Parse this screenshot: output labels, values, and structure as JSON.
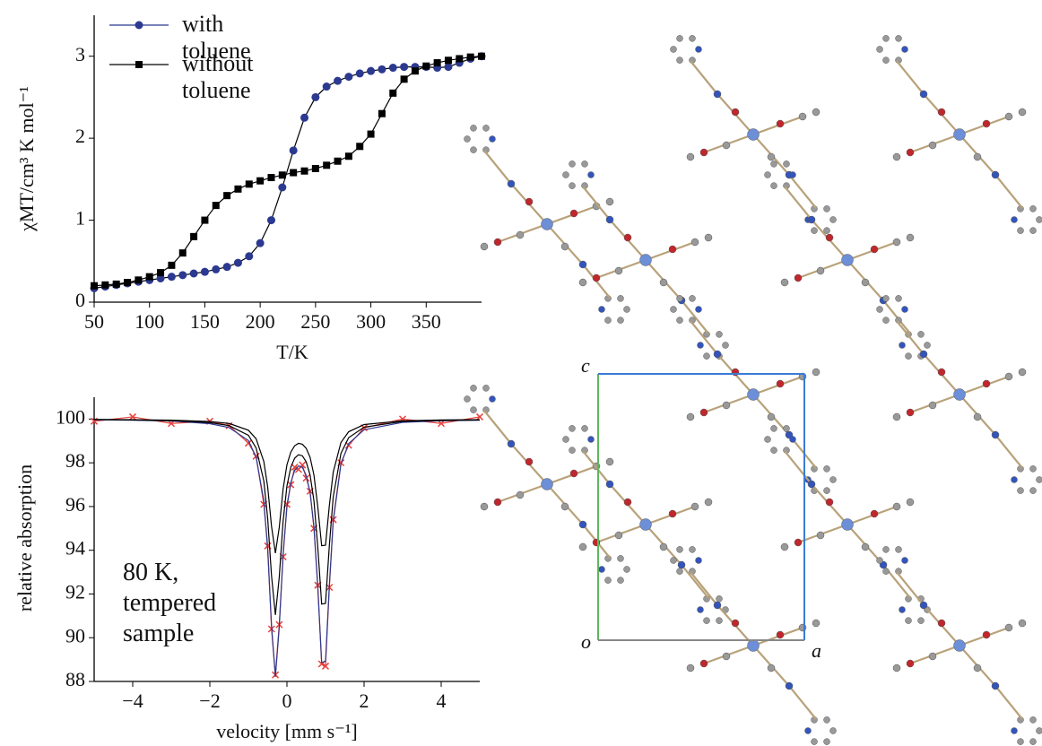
{
  "chart_data": [
    {
      "type": "line",
      "x_label": "T/K",
      "y_label": "χMT/cm³ K mol⁻¹",
      "x": [
        50,
        60,
        70,
        80,
        90,
        100,
        110,
        120,
        130,
        140,
        150,
        160,
        170,
        180,
        190,
        200,
        210,
        220,
        230,
        240,
        250,
        260,
        270,
        280,
        290,
        300,
        310,
        320,
        330,
        340,
        350,
        360,
        370,
        380,
        390,
        400
      ],
      "series": [
        {
          "name": "with toluene",
          "color": "#2b3990",
          "marker": "circle",
          "values": [
            0.17,
            0.19,
            0.21,
            0.23,
            0.25,
            0.27,
            0.29,
            0.31,
            0.33,
            0.35,
            0.37,
            0.4,
            0.43,
            0.48,
            0.56,
            0.72,
            1.0,
            1.4,
            1.85,
            2.25,
            2.5,
            2.63,
            2.7,
            2.75,
            2.79,
            2.82,
            2.84,
            2.86,
            2.87,
            2.87,
            2.87,
            2.86,
            2.87,
            2.92,
            2.97,
            3.0
          ]
        },
        {
          "name": "without toluene",
          "color": "#000000",
          "marker": "square",
          "values": [
            0.2,
            0.21,
            0.22,
            0.24,
            0.27,
            0.31,
            0.36,
            0.45,
            0.6,
            0.8,
            1.0,
            1.18,
            1.3,
            1.38,
            1.44,
            1.48,
            1.52,
            1.55,
            1.58,
            1.6,
            1.63,
            1.67,
            1.72,
            1.78,
            1.9,
            2.05,
            2.3,
            2.55,
            2.72,
            2.82,
            2.88,
            2.92,
            2.95,
            2.97,
            2.99,
            3.0
          ]
        }
      ],
      "xlim": [
        50,
        400
      ],
      "xticks": [
        50,
        100,
        150,
        200,
        250,
        300,
        350
      ],
      "ylim": [
        0,
        3.5
      ],
      "yticks": [
        0,
        1,
        2,
        3
      ]
    },
    {
      "type": "line",
      "x_label": "velocity [mm s⁻¹]",
      "y_label": "relative absorption",
      "annotation": "80 K, tempered sample",
      "x": [
        -5,
        -4,
        -3,
        -2,
        -1.5,
        -1,
        -0.8,
        -0.6,
        -0.5,
        -0.4,
        -0.3,
        -0.2,
        -0.1,
        0,
        0.1,
        0.2,
        0.3,
        0.4,
        0.5,
        0.6,
        0.7,
        0.8,
        0.9,
        1.0,
        1.1,
        1.2,
        1.4,
        1.6,
        2,
        3,
        4,
        5
      ],
      "series": [
        {
          "color": "#e8413c",
          "marker": "x",
          "values": [
            99.9,
            100.1,
            99.8,
            99.9,
            99.7,
            98.9,
            98.3,
            96.1,
            94.2,
            90.4,
            88.3,
            90.6,
            93.7,
            96.1,
            97.0,
            97.8,
            97.7,
            97.9,
            97.3,
            96.7,
            95.0,
            92.4,
            88.8,
            88.7,
            92.3,
            95.4,
            98.0,
            98.8,
            99.6,
            100.0,
            99.8,
            100.1
          ]
        },
        {
          "color": "#2b3990",
          "values": [
            99.97,
            99.95,
            99.91,
            99.79,
            99.61,
            99.02,
            98.26,
            96.27,
            94.03,
            90.56,
            88.21,
            90.47,
            93.85,
            95.98,
            97.1,
            97.65,
            97.86,
            97.79,
            97.42,
            96.63,
            95.08,
            92.27,
            88.87,
            88.91,
            92.41,
            95.32,
            97.94,
            98.88,
            99.51,
            99.85,
            99.92,
            99.95
          ]
        },
        {
          "color": "#000000",
          "values": [
            99.98,
            99.96,
            99.93,
            99.84,
            99.7,
            99.26,
            98.68,
            97.17,
            95.46,
            92.83,
            91.04,
            92.76,
            95.33,
            96.94,
            97.8,
            98.21,
            98.37,
            98.32,
            98.04,
            97.44,
            96.26,
            94.13,
            91.54,
            91.57,
            94.23,
            96.44,
            98.43,
            99.15,
            99.63,
            99.89,
            99.94,
            99.96
          ]
        },
        {
          "color": "#000000",
          "values": [
            99.98,
            99.97,
            99.95,
            99.89,
            99.8,
            99.49,
            99.1,
            98.06,
            96.9,
            95.09,
            93.87,
            95.04,
            96.8,
            97.91,
            98.49,
            98.78,
            98.89,
            98.85,
            98.66,
            98.25,
            97.44,
            95.98,
            94.21,
            94.23,
            96.05,
            97.57,
            98.93,
            99.42,
            99.75,
            99.92,
            99.96,
            99.97
          ]
        }
      ],
      "xlim": [
        -5,
        5
      ],
      "xticks": [
        {
          "value": -4,
          "label": "−4"
        },
        {
          "value": -2,
          "label": "−2"
        },
        0,
        2,
        4
      ],
      "ylim": [
        88,
        101
      ],
      "yticks": [
        88,
        90,
        92,
        94,
        96,
        98,
        100
      ]
    }
  ],
  "structure": {
    "axis_labels": [
      "c",
      "o",
      "a"
    ]
  }
}
